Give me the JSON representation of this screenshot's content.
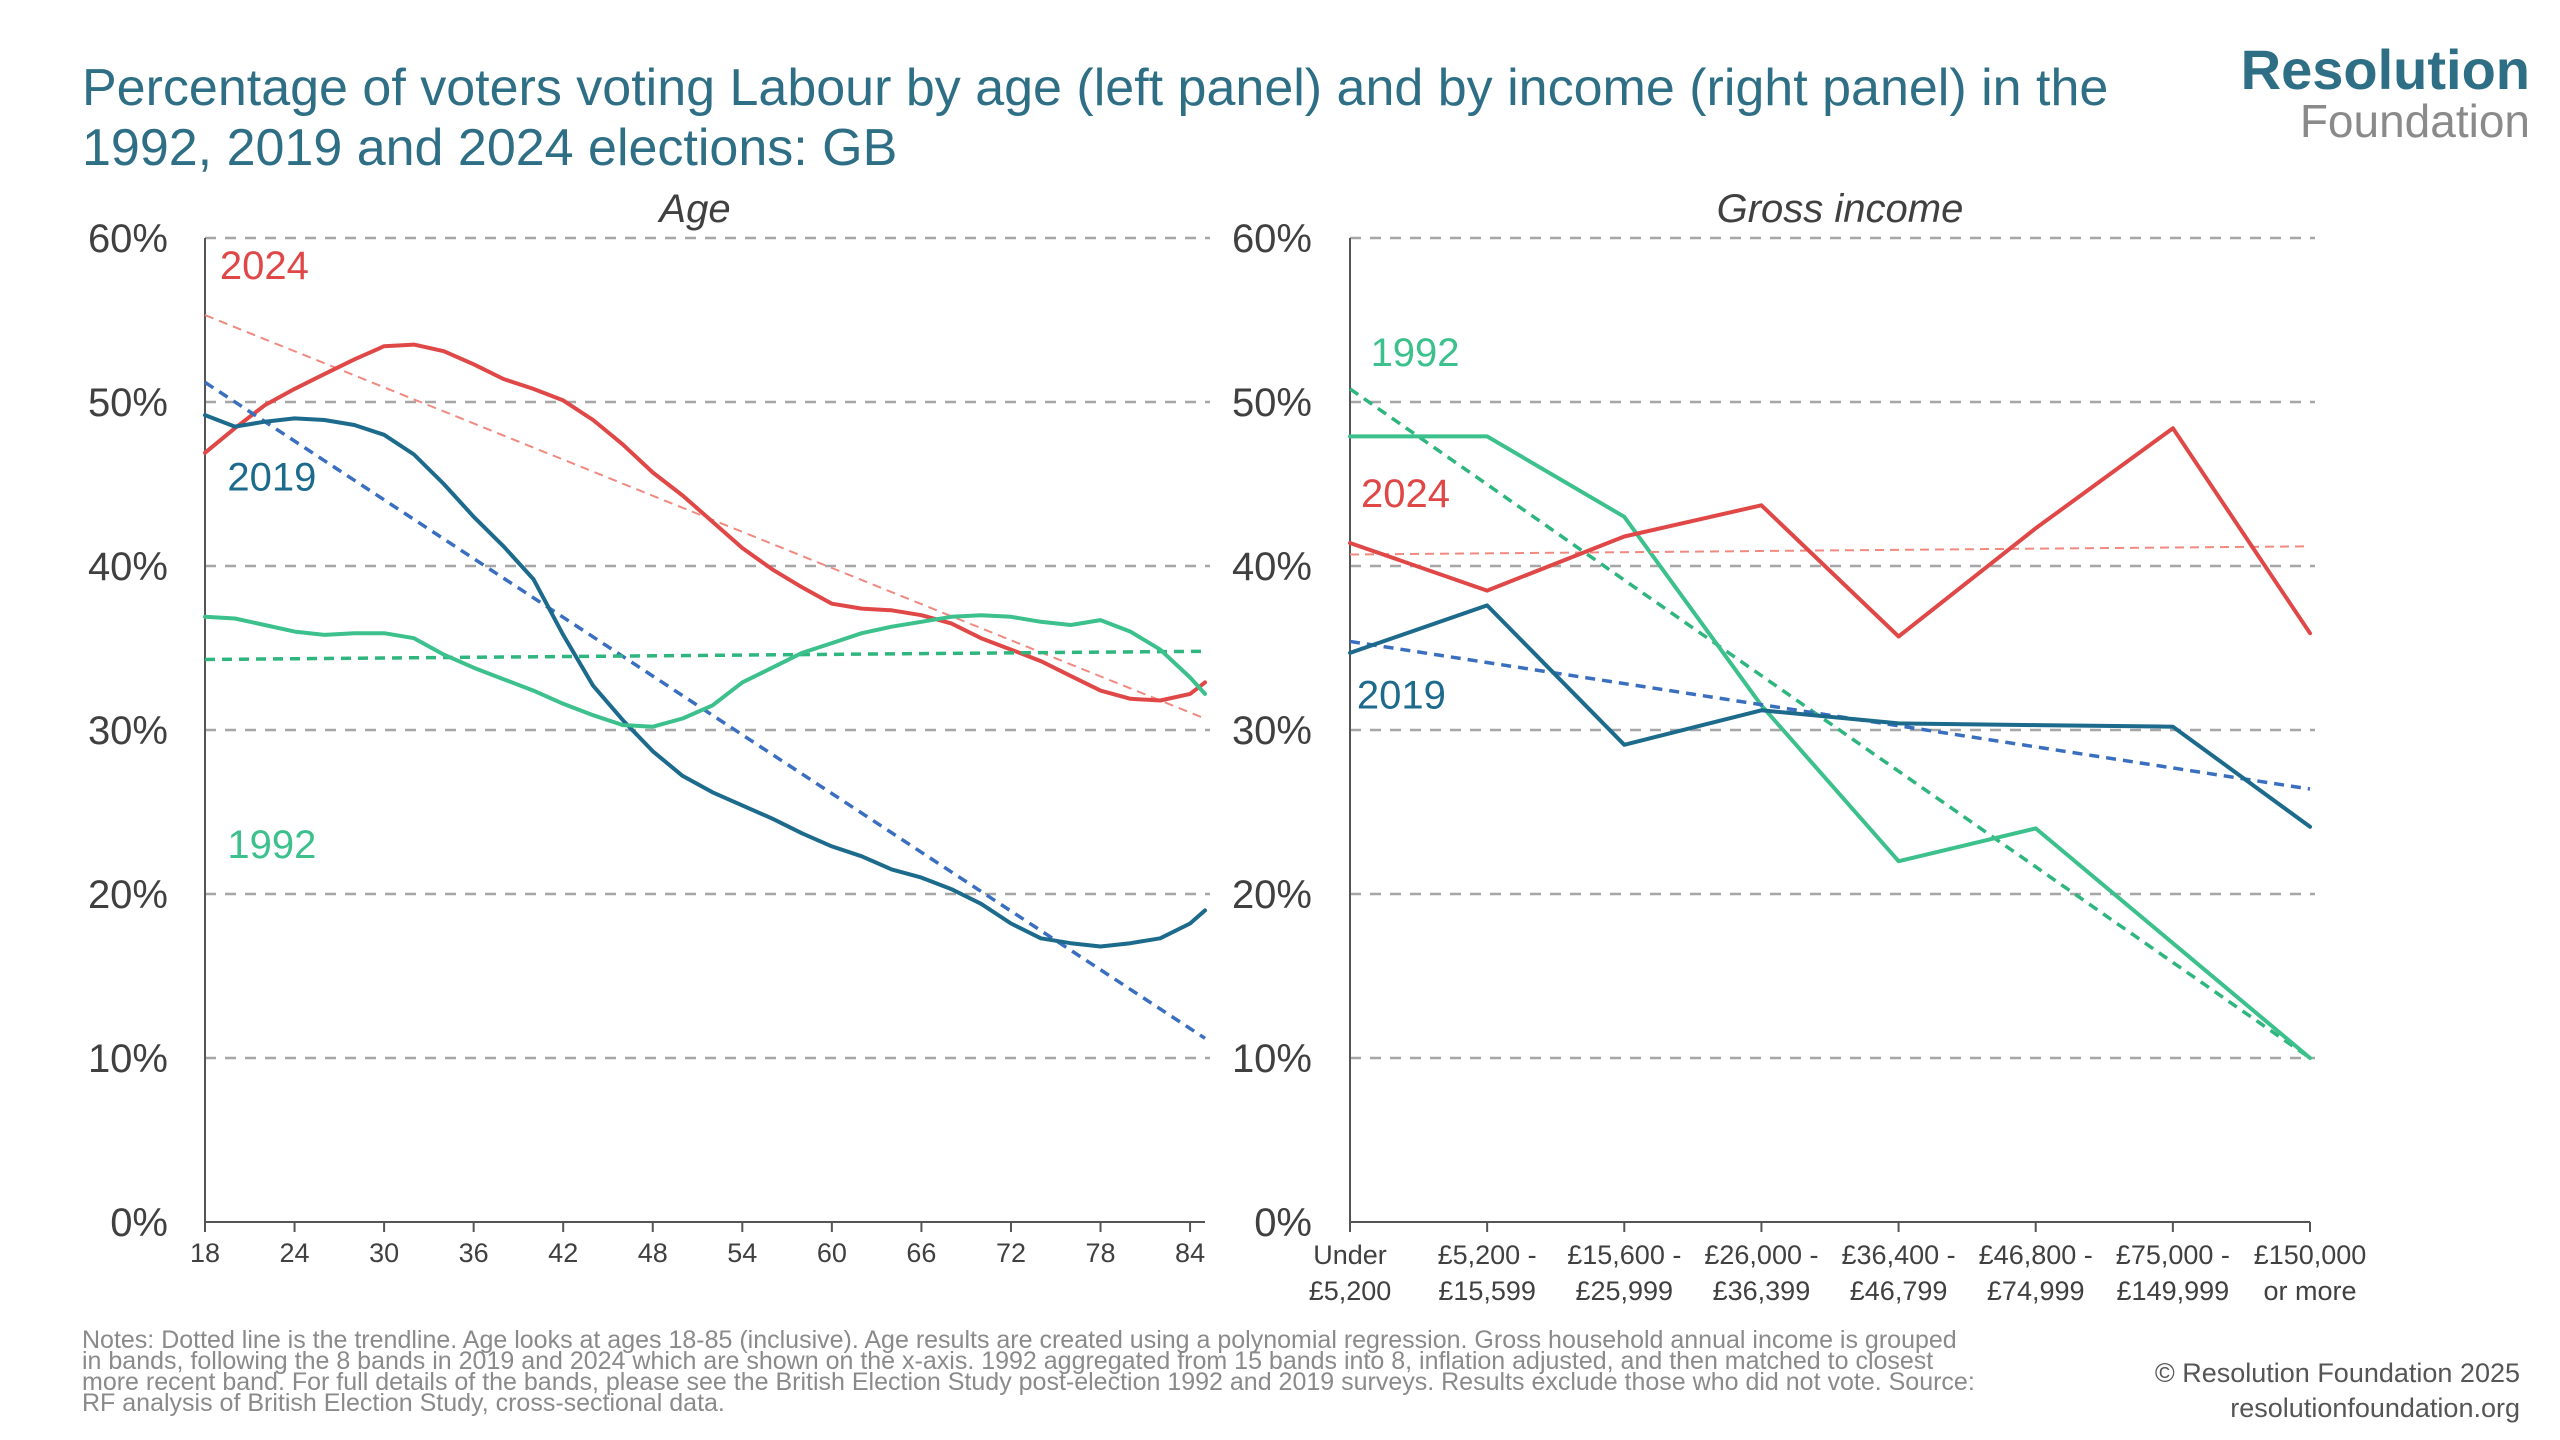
{
  "header": {
    "title": "Percentage of voters voting Labour by age (left panel) and by income (right panel) in the 1992, 2019 and 2024 elections: GB",
    "logo_main": "Resolution",
    "logo_sub": "Foundation"
  },
  "colors": {
    "y2024": "#e04848",
    "y2019": "#1c6a8c",
    "y1992": "#3cc08c",
    "trend2024": "#f08a80",
    "trend2019": "#3a6fc0",
    "trend1992": "#2fb57e",
    "grid": "#a6a6a6",
    "axis": "#555555",
    "text": "#404040"
  },
  "chart_data": [
    {
      "type": "line",
      "title": "Age",
      "ylim": [
        0,
        0.6
      ],
      "y_ticks": [
        "0%",
        "10%",
        "20%",
        "30%",
        "40%",
        "50%",
        "60%"
      ],
      "x_ticks": [
        "18",
        "24",
        "30",
        "36",
        "42",
        "48",
        "54",
        "60",
        "66",
        "72",
        "78",
        "84"
      ],
      "xlim": [
        18,
        85
      ],
      "grid": true,
      "series": [
        {
          "name": "2024",
          "key": "y2024",
          "x": [
            18,
            20,
            22,
            24,
            26,
            28,
            30,
            32,
            34,
            36,
            38,
            40,
            42,
            44,
            46,
            48,
            50,
            52,
            54,
            56,
            58,
            60,
            62,
            64,
            66,
            68,
            70,
            72,
            74,
            76,
            78,
            80,
            82,
            84,
            85
          ],
          "values": [
            0.469,
            0.484,
            0.498,
            0.508,
            0.517,
            0.526,
            0.534,
            0.535,
            0.531,
            0.523,
            0.514,
            0.508,
            0.501,
            0.489,
            0.474,
            0.457,
            0.443,
            0.427,
            0.411,
            0.398,
            0.387,
            0.377,
            0.374,
            0.373,
            0.37,
            0.365,
            0.356,
            0.349,
            0.342,
            0.333,
            0.324,
            0.319,
            0.318,
            0.322,
            0.329
          ],
          "label_x": 19,
          "label_y": 0.575,
          "trend": [
            0.553,
            0.307
          ],
          "trend_dashed": true
        },
        {
          "name": "2019",
          "key": "y2019",
          "x": [
            18,
            20,
            22,
            24,
            26,
            28,
            30,
            32,
            34,
            36,
            38,
            40,
            42,
            44,
            46,
            48,
            50,
            52,
            54,
            56,
            58,
            60,
            62,
            64,
            66,
            68,
            70,
            72,
            74,
            76,
            78,
            80,
            82,
            84,
            85
          ],
          "values": [
            0.492,
            0.485,
            0.488,
            0.49,
            0.489,
            0.486,
            0.48,
            0.468,
            0.45,
            0.43,
            0.412,
            0.392,
            0.358,
            0.327,
            0.306,
            0.287,
            0.272,
            0.262,
            0.254,
            0.246,
            0.237,
            0.229,
            0.223,
            0.215,
            0.21,
            0.203,
            0.194,
            0.182,
            0.173,
            0.17,
            0.168,
            0.17,
            0.173,
            0.182,
            0.19
          ],
          "label_x": 19.5,
          "label_y": 0.446,
          "trend": [
            0.512,
            0.112
          ],
          "trend_dashed": true
        },
        {
          "name": "1992",
          "key": "y1992",
          "x": [
            18,
            20,
            22,
            24,
            26,
            28,
            30,
            32,
            34,
            36,
            38,
            40,
            42,
            44,
            46,
            48,
            50,
            52,
            54,
            56,
            58,
            60,
            62,
            64,
            66,
            68,
            70,
            72,
            74,
            76,
            78,
            80,
            82,
            84,
            85
          ],
          "values": [
            0.369,
            0.368,
            0.364,
            0.36,
            0.358,
            0.359,
            0.359,
            0.356,
            0.346,
            0.338,
            0.331,
            0.324,
            0.316,
            0.309,
            0.303,
            0.302,
            0.307,
            0.315,
            0.329,
            0.338,
            0.347,
            0.353,
            0.359,
            0.363,
            0.366,
            0.369,
            0.37,
            0.369,
            0.366,
            0.364,
            0.367,
            0.36,
            0.349,
            0.332,
            0.322
          ],
          "label_x": 19.5,
          "label_y": 0.222,
          "trend": [
            0.343,
            0.348
          ],
          "trend_dashed": true
        }
      ]
    },
    {
      "type": "line",
      "title": "Gross income",
      "ylim": [
        0,
        0.6
      ],
      "y_ticks": [
        "0%",
        "10%",
        "20%",
        "30%",
        "40%",
        "50%",
        "60%"
      ],
      "categories": [
        [
          "Under",
          "£5,200"
        ],
        [
          "£5,200 -",
          "£15,599"
        ],
        [
          "£15,600 -",
          "£25,999"
        ],
        [
          "£26,000 -",
          "£36,399"
        ],
        [
          "£36,400 -",
          "£46,799"
        ],
        [
          "£46,800 -",
          "£74,999"
        ],
        [
          "£75,000 -",
          "£149,999"
        ],
        [
          "£150,000",
          "or more"
        ]
      ],
      "grid": true,
      "series": [
        {
          "name": "1992",
          "key": "y1992",
          "values": [
            0.479,
            0.479,
            0.43,
            0.315,
            0.22,
            0.24,
            0.17,
            0.1
          ],
          "label_x": 0.15,
          "label_y": 0.522,
          "trend": [
            0.508,
            0.1
          ],
          "trend_dashed": true
        },
        {
          "name": "2024",
          "key": "y2024",
          "values": [
            0.414,
            0.385,
            0.418,
            0.437,
            0.357,
            0.423,
            0.484,
            0.359
          ],
          "label_x": 0.08,
          "label_y": 0.436,
          "trend": [
            0.407,
            0.412
          ],
          "trend_dashed": true
        },
        {
          "name": "2019",
          "key": "y2019",
          "values": [
            0.347,
            0.376,
            0.291,
            0.312,
            0.304,
            0.303,
            0.302,
            0.241
          ],
          "label_x": 0.05,
          "label_y": 0.313,
          "trend": [
            0.354,
            0.264
          ],
          "trend_dashed": true
        }
      ]
    }
  ],
  "footer": {
    "notes": [
      "Notes: Dotted line is the trendline. Age looks at ages 18-85 (inclusive). Age results are created using a polynomial regression. Gross household annual income is grouped",
      "in bands, following the 8 bands in 2019 and 2024 which are shown on the x-axis. 1992 aggregated from 15 bands into 8, inflation adjusted, and then matched to closest",
      "more recent band. For full details of the bands, please see the British Election Study post-election 1992 and 2019 surveys. Results exclude those who did not vote. Source:",
      "RF analysis of British Election Study, cross-sectional data."
    ],
    "copyright": "© Resolution Foundation 2025",
    "website": "resolutionfoundation.org"
  }
}
